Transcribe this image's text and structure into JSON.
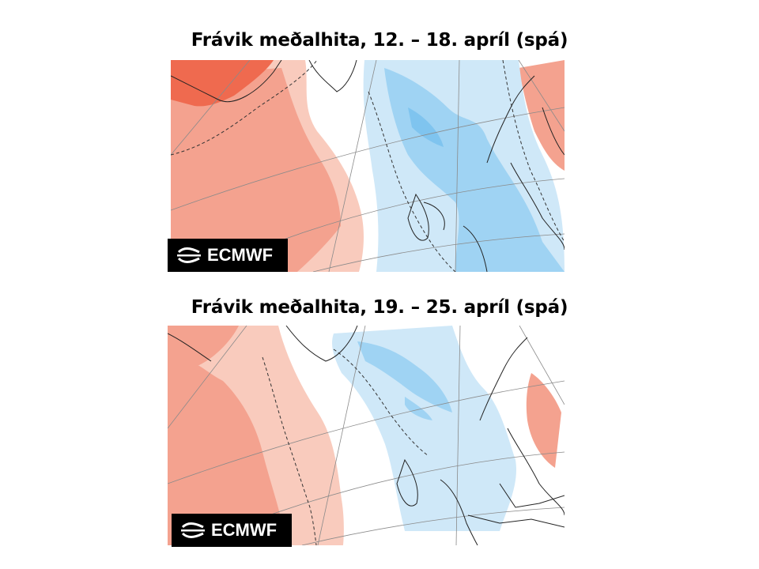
{
  "panels": [
    {
      "title": "Frávik meðalhita, 12. – 18. apríl (spá)",
      "logo_text": "ECMWF"
    },
    {
      "title": "Frávik meðalhita, 19. – 25. apríl (spá)",
      "logo_text": "ECMWF"
    }
  ],
  "colors": {
    "warm_light": "#f9cbbd",
    "warm": "#f4a28f",
    "warm_strong": "#ef6a4f",
    "cold_light": "#cfe8f8",
    "cold": "#9fd3f3",
    "cold_strong": "#7fc4ef"
  }
}
